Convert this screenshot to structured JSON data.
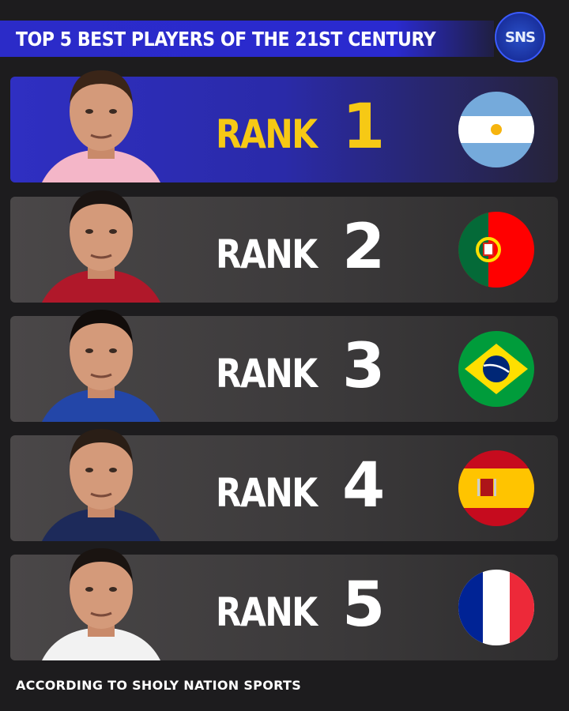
{
  "header": {
    "title": "TOP 5 BEST PLAYERS OF THE 21ST CENTURY",
    "logo_text": "SNS"
  },
  "rows": [
    {
      "label": "RANK",
      "number": "1",
      "flag": "argentina-flag",
      "highlight": true
    },
    {
      "label": "RANK",
      "number": "2",
      "flag": "portugal-flag"
    },
    {
      "label": "RANK",
      "number": "3",
      "flag": "brazil-flag"
    },
    {
      "label": "RANK",
      "number": "4",
      "flag": "spain-flag"
    },
    {
      "label": "RANK",
      "number": "5",
      "flag": "france-flag"
    }
  ],
  "footer": {
    "text": "ACCORDING TO SHOLY NATION SPORTS"
  },
  "colors": {
    "accent": "#2a2ad0",
    "rank1": "#f6c915",
    "background": "#1d1c1e"
  }
}
